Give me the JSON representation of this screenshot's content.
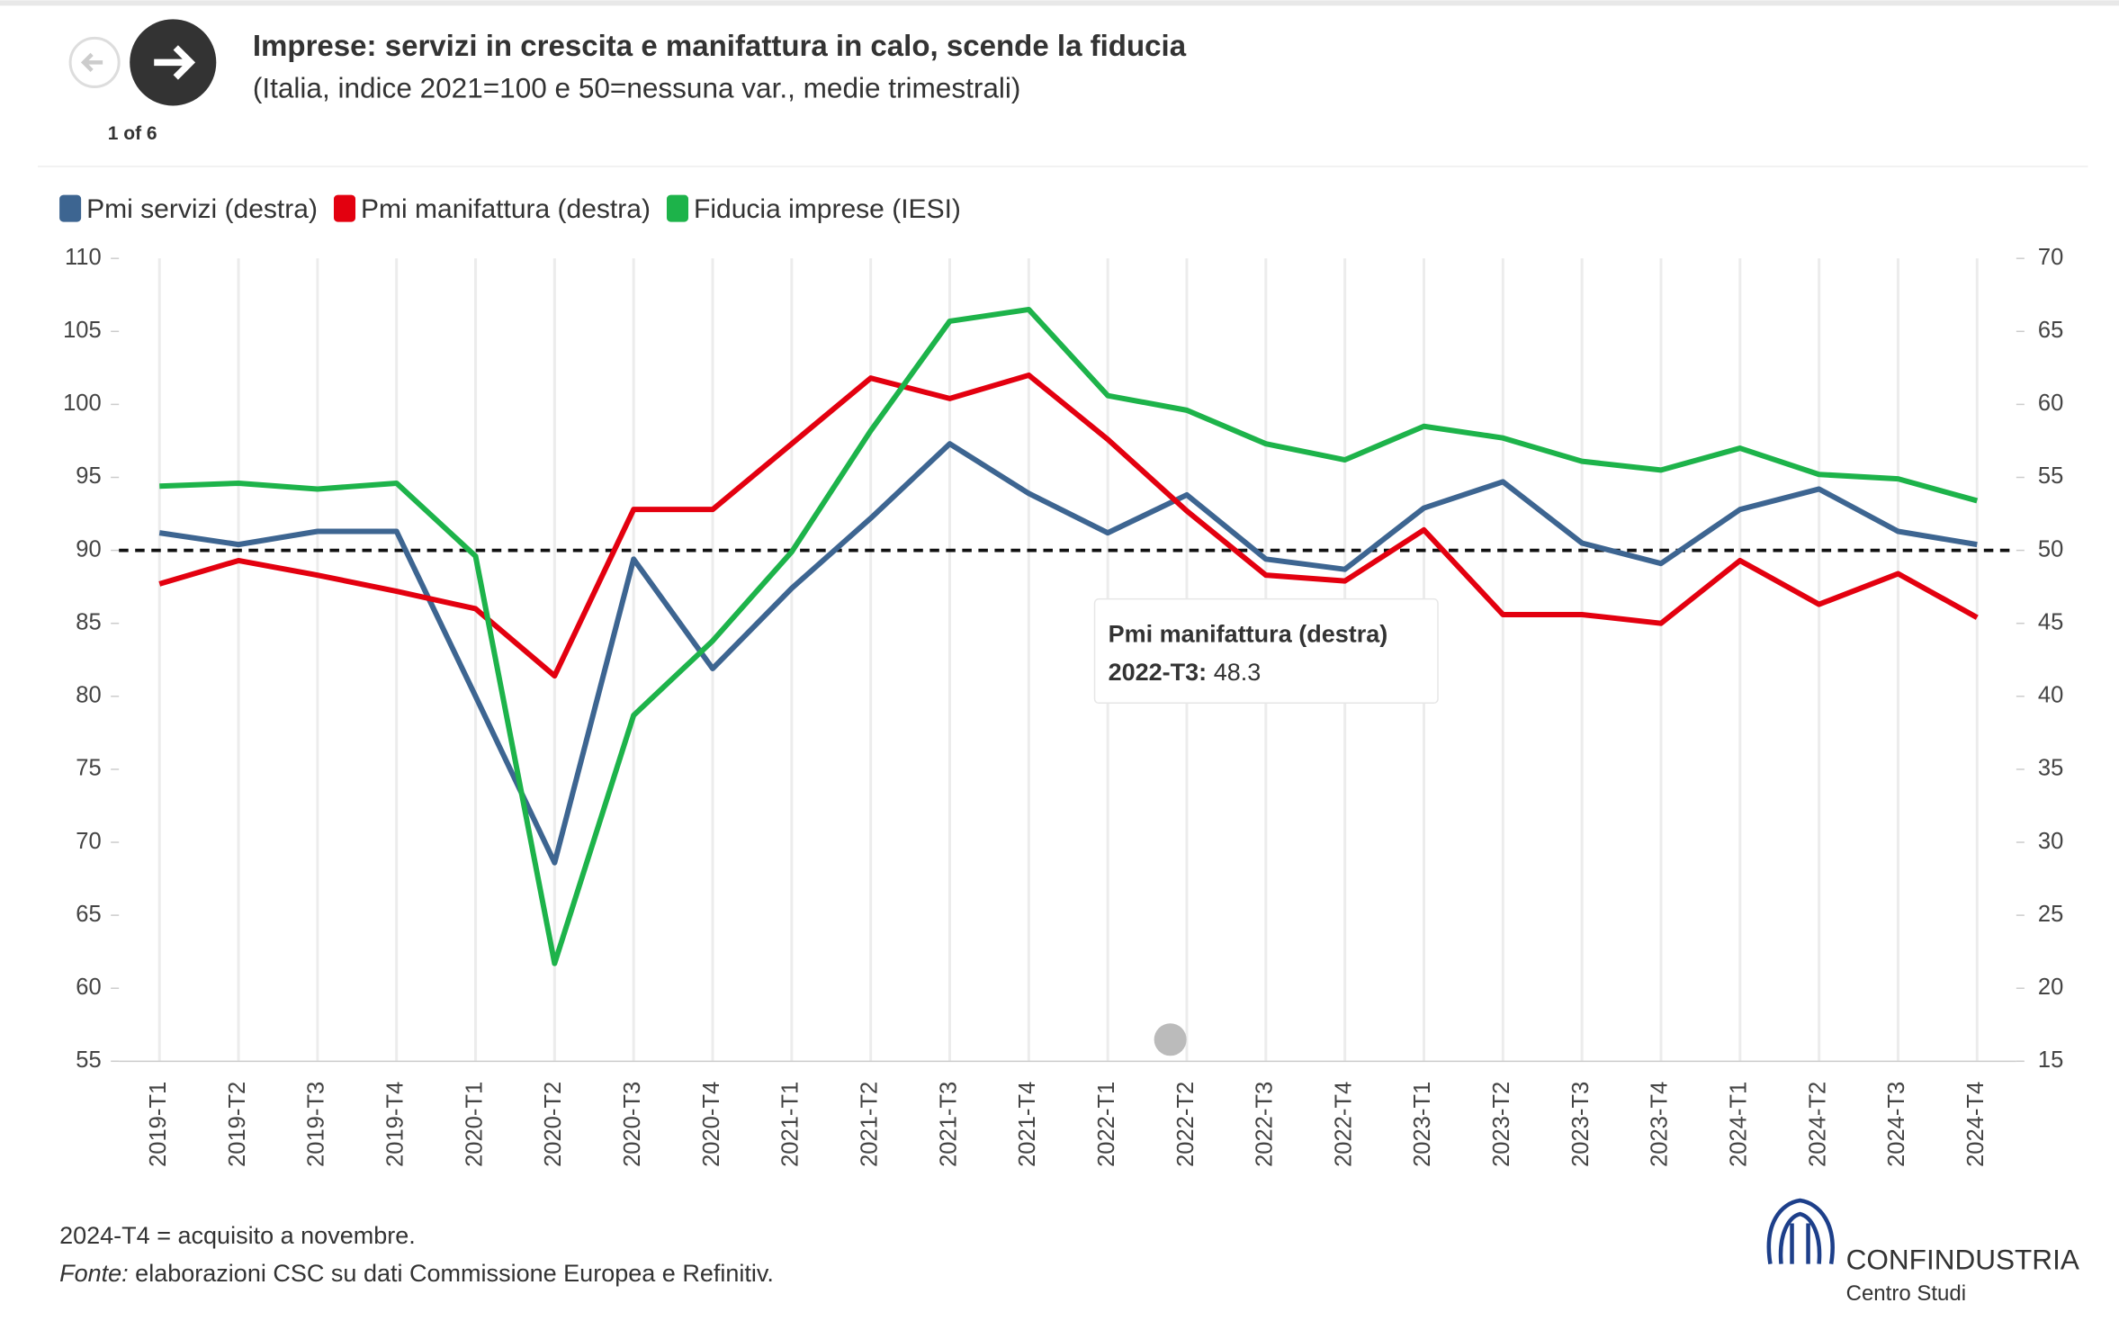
{
  "header": {
    "title": "Imprese: servizi in crescita e manifattura in calo, scende la fiducia",
    "subtitle": "(Italia, indice 2021=100 e 50=nessuna var., medie trimestrali)",
    "pager": "1 of 6"
  },
  "chart_data": {
    "type": "line",
    "categories": [
      "2019-T1",
      "2019-T2",
      "2019-T3",
      "2019-T4",
      "2020-T1",
      "2020-T2",
      "2020-T3",
      "2020-T4",
      "2021-T1",
      "2021-T2",
      "2021-T3",
      "2021-T4",
      "2022-T1",
      "2022-T2",
      "2022-T3",
      "2022-T4",
      "2023-T1",
      "2023-T2",
      "2023-T3",
      "2023-T4",
      "2024-T1",
      "2024-T2",
      "2024-T3",
      "2024-T4"
    ],
    "series": [
      {
        "name": "Pmi servizi (destra)",
        "color": "#3d6591",
        "axis": "y2",
        "values": [
          51.2,
          50.4,
          51.3,
          51.3,
          40.0,
          28.6,
          49.4,
          41.9,
          47.4,
          52.2,
          57.3,
          53.9,
          51.2,
          53.8,
          49.4,
          48.7,
          52.9,
          54.7,
          50.5,
          49.1,
          52.8,
          54.2,
          51.3,
          50.4
        ]
      },
      {
        "name": "Pmi manifattura (destra)",
        "color": "#e3000f",
        "axis": "y2",
        "values": [
          47.7,
          49.3,
          48.3,
          47.2,
          46.0,
          41.4,
          52.8,
          52.8,
          57.3,
          61.8,
          60.4,
          62.0,
          57.6,
          52.7,
          48.3,
          47.9,
          51.4,
          45.6,
          45.6,
          45.0,
          49.3,
          46.3,
          48.4,
          45.4
        ]
      },
      {
        "name": "Fiducia imprese (IESI)",
        "color": "#1db34a",
        "values": [
          94.4,
          94.6,
          94.2,
          94.6,
          89.6,
          61.7,
          78.7,
          83.8,
          89.9,
          98.2,
          105.7,
          106.5,
          100.6,
          99.6,
          97.3,
          96.2,
          98.5,
          97.7,
          96.1,
          95.5,
          97.0,
          95.2,
          94.9,
          93.4
        ]
      }
    ],
    "ylim": [
      55,
      110
    ],
    "yticks": [
      55,
      60,
      65,
      70,
      75,
      80,
      85,
      90,
      95,
      100,
      105,
      110
    ],
    "y2lim": [
      15,
      70
    ],
    "y2ticks": [
      15,
      20,
      25,
      30,
      35,
      40,
      45,
      50,
      55,
      60,
      65,
      70
    ],
    "reference_line": 90,
    "grid": true,
    "tooltip": {
      "title": "Pmi manifattura (destra)",
      "category": "2022-T3:",
      "value": 48.3
    }
  },
  "footer": {
    "note": "2024-T4 = acquisito a novembre.",
    "source_label": "Fonte:",
    "source": " elaborazioni CSC su dati Commissione Europea e Refinitiv.",
    "logo": "CONFINDUSTRIA",
    "logo_sub": "Centro Studi"
  }
}
